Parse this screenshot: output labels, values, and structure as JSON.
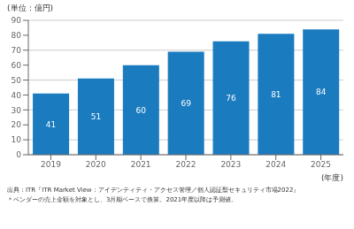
{
  "chart_data": {
    "type": "bar",
    "ylabel": "(単位：億円)",
    "xlabel": "(年度)",
    "annotations": [
      "出典：ITR『ITR Market View：アイデンティティ・アクセス管理／個人認証型セキュリティ市場2022』",
      "＊ベンダーの売上金額を対象とし、3月期ベースで換算。2021年度以降は予測値。"
    ],
    "categories": [
      "2019",
      "2020",
      "2021",
      "2022",
      "2023",
      "2024",
      "2025"
    ],
    "values": [
      41,
      51,
      60,
      69,
      76,
      81,
      84
    ],
    "color": "#1a7bbf",
    "ylim": [
      0,
      90
    ],
    "yticks": [
      0,
      10,
      20,
      30,
      40,
      50,
      60,
      70,
      80,
      90
    ],
    "grid": true,
    "data_labels": true
  }
}
